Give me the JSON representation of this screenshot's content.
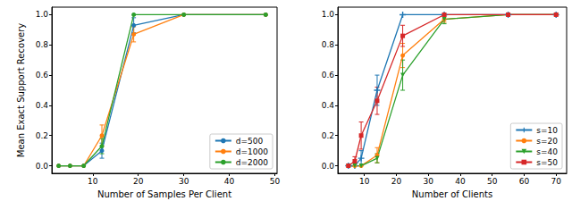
{
  "chart_data": [
    {
      "type": "line",
      "xlabel": "Number of Samples Per Client",
      "ylabel": "Mean Exact Support Recovery",
      "x": [
        2.5,
        5,
        8,
        12,
        19,
        30,
        48
      ],
      "xlim": [
        1,
        50.5
      ],
      "xticks": [
        10,
        20,
        30,
        40,
        50
      ],
      "ylim": [
        -0.05,
        1.05
      ],
      "yticks": [
        {
          "value": 0,
          "label": "0.0"
        },
        {
          "value": 0.2,
          "label": "0.2"
        },
        {
          "value": 0.4,
          "label": "0.4"
        },
        {
          "value": 0.6,
          "label": "0.6"
        },
        {
          "value": 0.8,
          "label": "0.8"
        },
        {
          "value": 1.0,
          "label": "1.0"
        }
      ],
      "grid": false,
      "legend": "lower right",
      "series": [
        {
          "name": "d=500",
          "color": "#1f77b4",
          "marker": "circle",
          "values": [
            0,
            0,
            0,
            0.1,
            0.93,
            1.0,
            1.0
          ],
          "errors": [
            null,
            null,
            null,
            0.05,
            0.05,
            null,
            null
          ]
        },
        {
          "name": "d=1000",
          "color": "#ff7f0e",
          "marker": "circle",
          "values": [
            0,
            0,
            0,
            0.2,
            0.87,
            1.0,
            1.0
          ],
          "errors": [
            null,
            null,
            null,
            0.07,
            0.05,
            null,
            null
          ]
        },
        {
          "name": "d=2000",
          "color": "#2ca02c",
          "marker": "circle",
          "values": [
            0,
            0,
            0,
            0.13,
            1.0,
            1.0,
            1.0
          ],
          "errors": [
            null,
            null,
            null,
            0.05,
            null,
            null,
            null
          ]
        }
      ]
    },
    {
      "type": "line",
      "xlabel": "Number of Clients",
      "ylabel": "",
      "x": [
        5,
        7,
        9,
        14,
        22,
        35,
        55,
        70
      ],
      "xlim": [
        1.7,
        73.3
      ],
      "xticks": [
        10,
        20,
        30,
        40,
        50,
        60,
        70
      ],
      "ylim": [
        -0.05,
        1.05
      ],
      "yticks": [
        {
          "value": 0,
          "label": "0.0"
        },
        {
          "value": 0.2,
          "label": "0.2"
        },
        {
          "value": 0.4,
          "label": "0.4"
        },
        {
          "value": 0.6,
          "label": "0.6"
        },
        {
          "value": 0.8,
          "label": "0.8"
        },
        {
          "value": 1.0,
          "label": "1.0"
        }
      ],
      "grid": false,
      "legend": "lower right",
      "series": [
        {
          "name": "s=10",
          "color": "#1f77b4",
          "marker": "plus",
          "values": [
            0,
            0,
            0.05,
            0.5,
            1.0,
            1.0,
            1.0,
            1.0
          ],
          "errors": [
            null,
            null,
            0.05,
            0.1,
            null,
            null,
            null,
            null
          ]
        },
        {
          "name": "s=20",
          "color": "#ff7f0e",
          "marker": "circle",
          "values": [
            0,
            0,
            0,
            0.07,
            0.73,
            0.97,
            1.0,
            1.0
          ],
          "errors": [
            null,
            null,
            null,
            0.05,
            0.08,
            0.02,
            null,
            null
          ]
        },
        {
          "name": "s=40",
          "color": "#2ca02c",
          "marker": "triangle_down",
          "values": [
            0,
            0,
            0,
            0.05,
            0.6,
            0.97,
            1.0,
            1.0
          ],
          "errors": [
            null,
            null,
            null,
            0.03,
            0.1,
            0.03,
            null,
            null
          ]
        },
        {
          "name": "s=50",
          "color": "#d62728",
          "marker": "square",
          "values": [
            0,
            0.03,
            0.2,
            0.43,
            0.86,
            1.0,
            1.0,
            1.0
          ],
          "errors": [
            null,
            0.03,
            0.09,
            0.09,
            0.07,
            null,
            null,
            null
          ]
        }
      ]
    }
  ]
}
